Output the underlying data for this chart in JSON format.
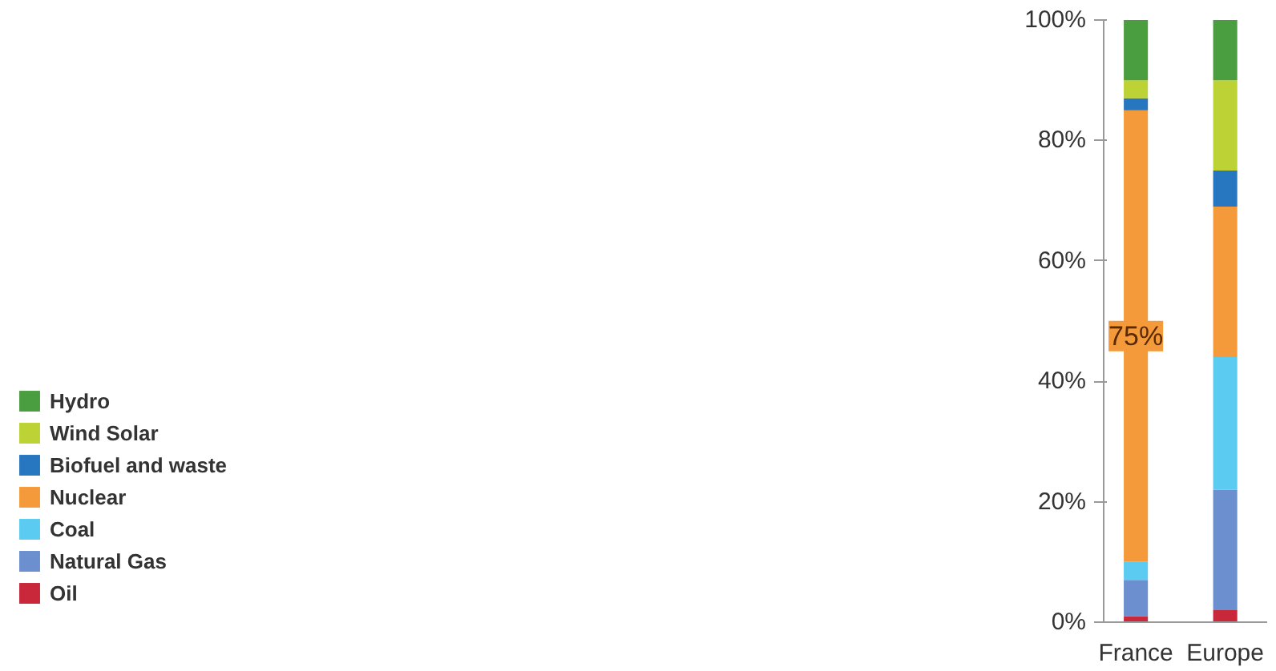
{
  "chart_data": {
    "type": "bar",
    "stacked": true,
    "categories": [
      "France",
      "Europe"
    ],
    "series": [
      {
        "name": "Oil",
        "color": "#c8283a",
        "values": [
          1,
          2
        ]
      },
      {
        "name": "Natural Gas",
        "color": "#6b8fcf",
        "values": [
          6,
          20
        ]
      },
      {
        "name": "Coal",
        "color": "#5ccbf2",
        "values": [
          3,
          22
        ]
      },
      {
        "name": "Nuclear",
        "color": "#f59a3a",
        "values": [
          75,
          25
        ],
        "value_labels": [
          "75%",
          null
        ]
      },
      {
        "name": "Biofuel and waste",
        "color": "#2777c0",
        "values": [
          2,
          6
        ]
      },
      {
        "name": "Wind Solar",
        "color": "#bcd235",
        "values": [
          3,
          15
        ]
      },
      {
        "name": "Hydro",
        "color": "#4a9e3f",
        "values": [
          10,
          10
        ]
      }
    ],
    "ylim": [
      0,
      100
    ],
    "yticks": [
      {
        "value": 0,
        "label": "0%"
      },
      {
        "value": 20,
        "label": "20%"
      },
      {
        "value": 40,
        "label": "40%"
      },
      {
        "value": 60,
        "label": "60%"
      },
      {
        "value": 80,
        "label": "80%"
      },
      {
        "value": 100,
        "label": "100%"
      }
    ],
    "grid": false,
    "legend": "left"
  }
}
